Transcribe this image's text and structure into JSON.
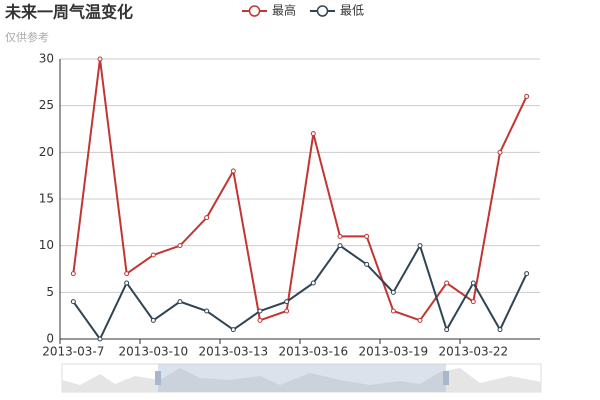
{
  "chart_data": {
    "type": "line",
    "title": "未来一周气温变化",
    "subtitle": "仅供参考",
    "categories": [
      "2013-03-7",
      null,
      null,
      "2013-03-10",
      null,
      null,
      "2013-03-13",
      null,
      null,
      "2013-03-16",
      null,
      null,
      "2013-03-19",
      null,
      null,
      "2013-03-22",
      null,
      null
    ],
    "series": [
      {
        "name": "最高",
        "color": "#c23531",
        "values": [
          7,
          30,
          7,
          9,
          10,
          13,
          18,
          2,
          3,
          22,
          11,
          11,
          3,
          2,
          6,
          4,
          20,
          26
        ]
      },
      {
        "name": "最低",
        "color": "#2f4554",
        "values": [
          4,
          0,
          6,
          2,
          4,
          3,
          1,
          3,
          4,
          6,
          10,
          8,
          5,
          10,
          1,
          6,
          1,
          7
        ]
      }
    ],
    "ylim": [
      0,
      30
    ],
    "yticks": [
      0,
      5,
      10,
      15,
      20,
      25,
      30
    ],
    "grid": true,
    "legend": "top"
  }
}
